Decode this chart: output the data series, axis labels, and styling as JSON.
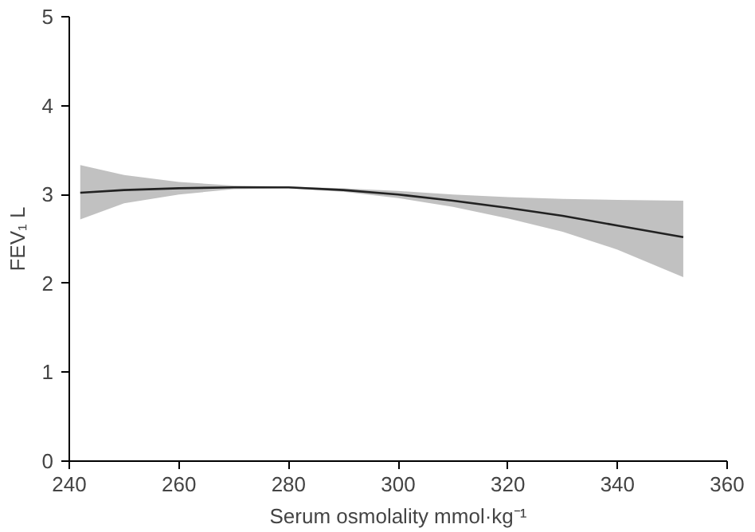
{
  "chart_data": {
    "type": "line",
    "xlabel": "Serum osmolality mmol·kg⁻¹",
    "ylabel": "FEV₁ L",
    "x": [
      242,
      250,
      260,
      270,
      280,
      290,
      300,
      310,
      320,
      330,
      340,
      352
    ],
    "series": [
      {
        "color": "#222222",
        "values": [
          3.02,
          3.05,
          3.07,
          3.08,
          3.08,
          3.05,
          3.0,
          2.93,
          2.85,
          2.76,
          2.65,
          2.52
        ],
        "lower": [
          2.72,
          2.9,
          3.0,
          3.06,
          3.07,
          3.03,
          2.96,
          2.86,
          2.73,
          2.58,
          2.38,
          2.07
        ],
        "upper": [
          3.33,
          3.22,
          3.14,
          3.1,
          3.09,
          3.07,
          3.04,
          3.0,
          2.97,
          2.95,
          2.94,
          2.93
        ]
      }
    ],
    "xlim": [
      240,
      360
    ],
    "xticks": [
      240,
      260,
      280,
      300,
      320,
      340,
      360
    ],
    "ylim": [
      0,
      5
    ],
    "yticks": [
      0,
      1,
      2,
      3,
      4,
      5
    ],
    "grid": false
  }
}
